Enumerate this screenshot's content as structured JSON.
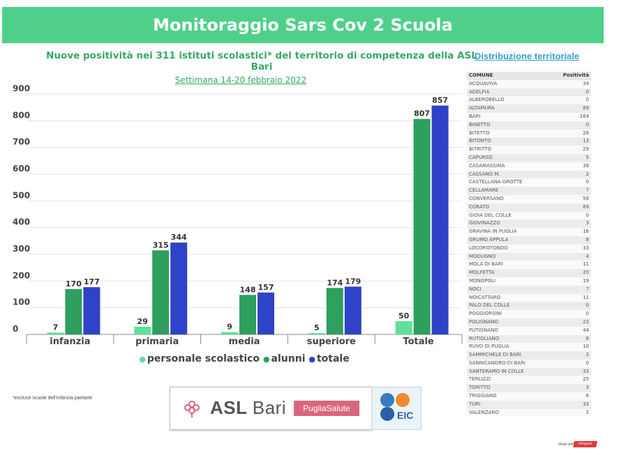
{
  "header": {
    "title": "Monitoraggio Sars Cov 2 Scuola",
    "subtitle": "Nuove positività nei 311 istituti scolastici* del territorio di competenza della ASL Bari",
    "week": "Settimana 14-20 febbraio 2022",
    "distribution_title": "Distribuzione territoriale"
  },
  "chart_data": {
    "type": "bar",
    "categories": [
      "infanzia",
      "primaria",
      "media",
      "superiore",
      "Totale"
    ],
    "series": [
      {
        "name": "personale scolastico",
        "color": "#5ee19b",
        "values": [
          7,
          29,
          9,
          5,
          50
        ]
      },
      {
        "name": "alunni",
        "color": "#2e9f5c",
        "values": [
          170,
          315,
          148,
          174,
          807
        ]
      },
      {
        "name": "totale",
        "color": "#2f43c8",
        "values": [
          177,
          344,
          157,
          179,
          857
        ]
      }
    ],
    "y_ticks": [
      "0",
      "100",
      "200",
      "300",
      "400",
      "500",
      "600",
      "700",
      "800",
      "900"
    ],
    "ylim": [
      0,
      900
    ],
    "grid": true,
    "legend_position": "bottom"
  },
  "footnote": "*escluse scuole dell'infanzia paritarie",
  "logos": {
    "asl_bold": "ASL",
    "asl_light": "Bari",
    "puglia": "PugliaSalute",
    "eic": "EIC"
  },
  "table": {
    "headers": [
      "COMUNE",
      "Positività"
    ],
    "rows": [
      [
        "ACQUAVIVA",
        "34"
      ],
      [
        "ADELFIA",
        "0"
      ],
      [
        "ALBEROBELLO",
        "0"
      ],
      [
        "ALTAMURA",
        "89"
      ],
      [
        "BARI",
        "164"
      ],
      [
        "BINETTO",
        "0"
      ],
      [
        "BITETTO",
        "28"
      ],
      [
        "BITONTO",
        "13"
      ],
      [
        "BITRITTO",
        "29"
      ],
      [
        "CAPURSO",
        "5"
      ],
      [
        "CASAMASSIMA",
        "38"
      ],
      [
        "CASSANO M.",
        "2"
      ],
      [
        "CASTELLANA GROTTE",
        "0"
      ],
      [
        "CELLAMARE",
        "7"
      ],
      [
        "CONVERSANO",
        "58"
      ],
      [
        "CORATO",
        "69"
      ],
      [
        "GIOIA DEL COLLE",
        "0"
      ],
      [
        "GIOVINAZZO",
        "3"
      ],
      [
        "GRAVINA IN PUGLIA",
        "16"
      ],
      [
        "GRUMO APPULA",
        "8"
      ],
      [
        "LOCOROTONDO",
        "33"
      ],
      [
        "MODUGNO",
        "4"
      ],
      [
        "MOLA DI BARI",
        "11"
      ],
      [
        "MOLFETTA",
        "20"
      ],
      [
        "MONOPOLI",
        "19"
      ],
      [
        "NOCI",
        "7"
      ],
      [
        "NOICATTARO",
        "11"
      ],
      [
        "PALO DEL COLLE",
        "0"
      ],
      [
        "POGGIORSINI",
        "0"
      ],
      [
        "POLIGNANO",
        "23"
      ],
      [
        "PUTIGNANO",
        "44"
      ],
      [
        "RUTIGLIANO",
        "8"
      ],
      [
        "RUVO DI PUGLIA",
        "10"
      ],
      [
        "SAMMICHELE DI BARI",
        "2"
      ],
      [
        "SANNICANDRO DI BARI",
        "0"
      ],
      [
        "SANTERAMO IN COLLE",
        "33"
      ],
      [
        "TERLIZZI",
        "25"
      ],
      [
        "TORITTO",
        "3"
      ],
      [
        "TRIGGIANO",
        "6"
      ],
      [
        "TURI",
        "33"
      ],
      [
        "VALENZANO",
        "2"
      ]
    ]
  },
  "footer": {
    "made_with": "Made with",
    "infogram": "infogram"
  }
}
